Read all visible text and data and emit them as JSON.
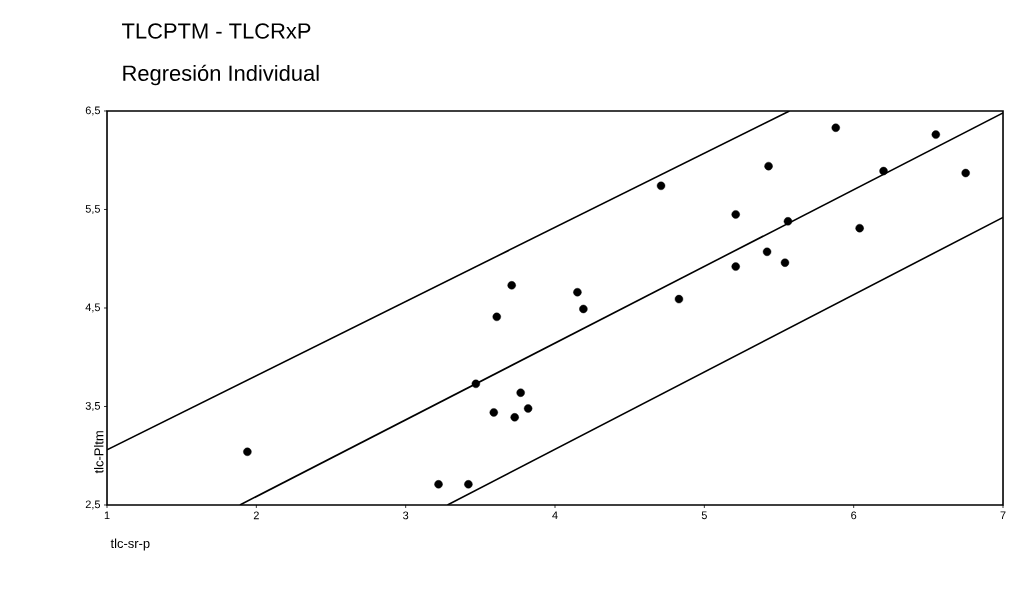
{
  "chart_data": {
    "type": "scatter",
    "title": "TLCPTM - TLCRxP",
    "subtitle": "Regresión Individual",
    "xlabel": "tlc-sr-p",
    "ylabel": "tlc-Pltm",
    "xlim": [
      1,
      7
    ],
    "ylim": [
      2.5,
      6.5
    ],
    "xticks": [
      1,
      2,
      3,
      4,
      5,
      6,
      7
    ],
    "yticks": [
      {
        "value": 2.5,
        "label": "2,5"
      },
      {
        "value": 3.5,
        "label": "3,5"
      },
      {
        "value": 4.5,
        "label": "4,5"
      },
      {
        "value": 5.5,
        "label": "5,5"
      },
      {
        "value": 6.5,
        "label": "6,5"
      }
    ],
    "series": [
      {
        "marker": "circle",
        "color": "#000000",
        "x": [
          1.94,
          3.22,
          3.42,
          3.47,
          3.59,
          3.61,
          3.71,
          3.73,
          3.77,
          3.82,
          4.15,
          4.19,
          4.71,
          4.83,
          5.21,
          5.21,
          5.42,
          5.43,
          5.54,
          5.56,
          5.88,
          6.04,
          6.2,
          6.55,
          6.75
        ],
        "values": [
          3.04,
          2.71,
          2.71,
          3.73,
          3.44,
          4.41,
          4.73,
          3.39,
          3.64,
          3.48,
          4.66,
          4.49,
          5.74,
          4.59,
          5.45,
          4.92,
          5.07,
          5.94,
          4.96,
          5.38,
          6.33,
          5.31,
          5.89,
          6.26,
          5.87
        ]
      },
      {
        "type": "line",
        "marker": "none",
        "color": "#000000",
        "x": [
          1,
          5.57
        ],
        "values": [
          3.06,
          6.5
        ]
      },
      {
        "type": "line",
        "marker": "none",
        "color": "#000000",
        "x": [
          1.89,
          7
        ],
        "values": [
          2.5,
          6.48
        ]
      },
      {
        "type": "line",
        "marker": "none",
        "color": "#000000",
        "x": [
          3.28,
          7
        ],
        "values": [
          2.5,
          5.42
        ]
      }
    ]
  }
}
